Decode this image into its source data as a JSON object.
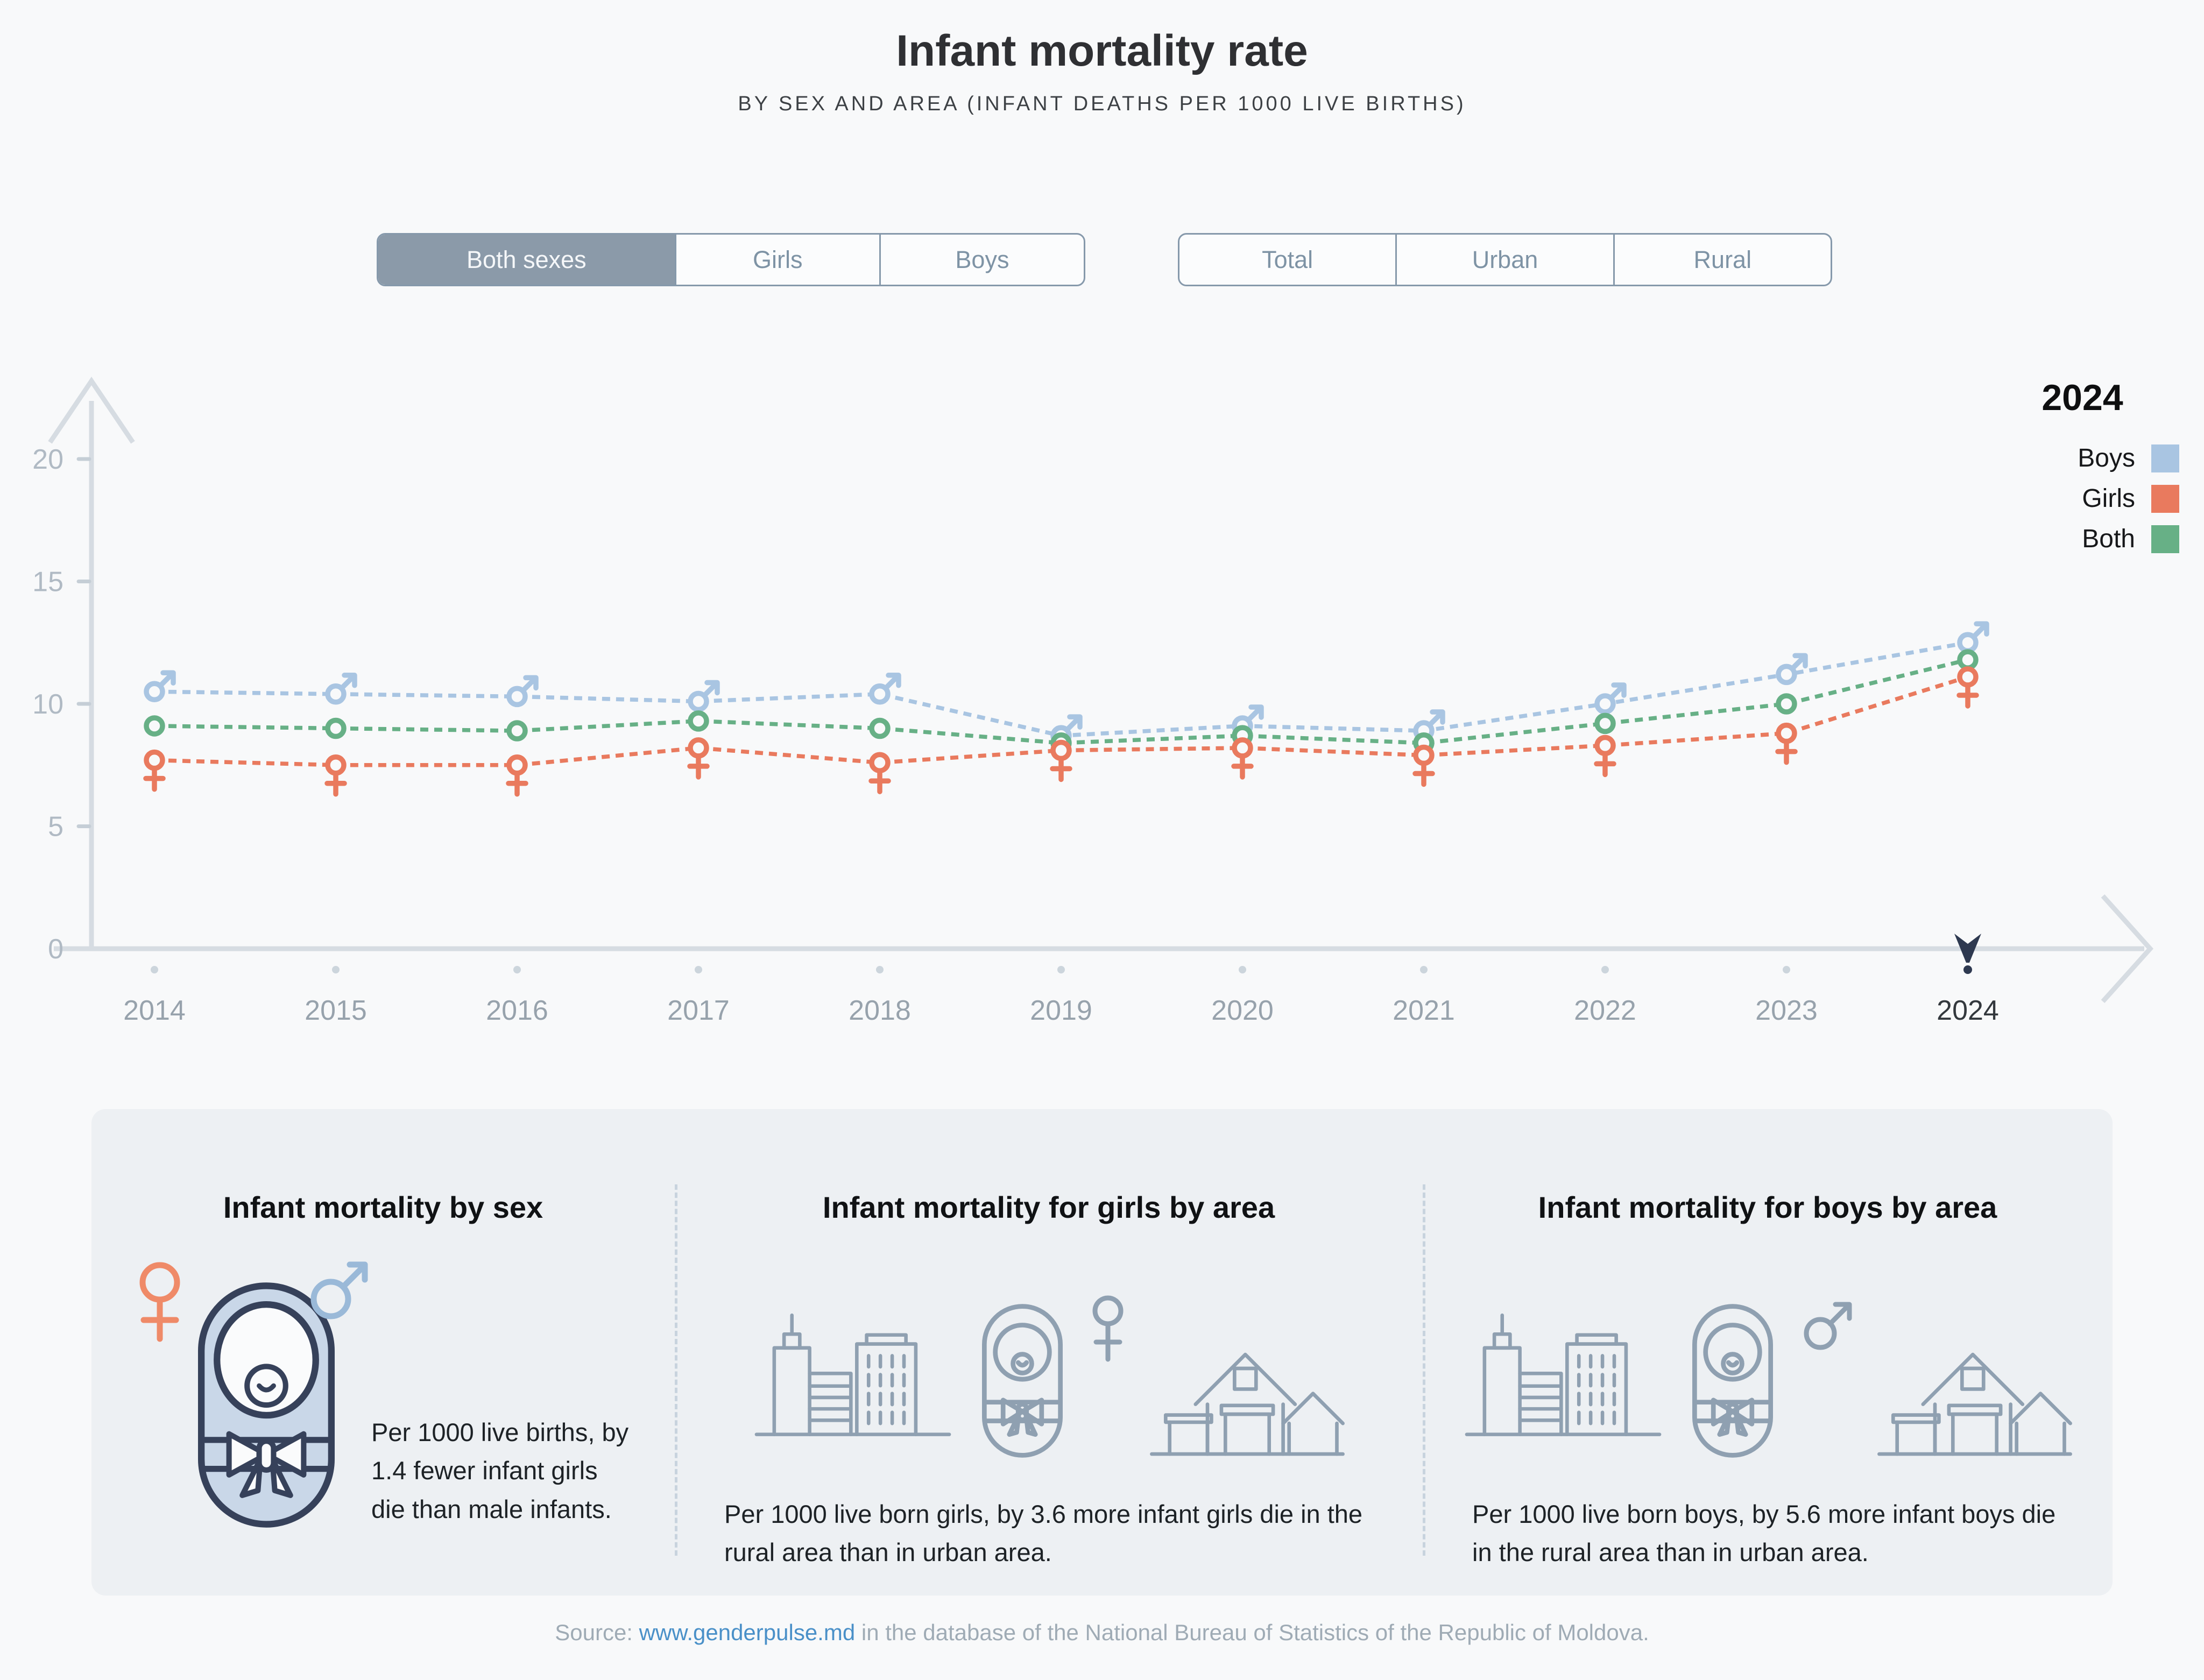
{
  "header": {
    "title": "Infant mortality rate",
    "subtitle": "BY SEX AND AREA (INFANT DEATHS PER 1000 LIVE BIRTHS)"
  },
  "controls": {
    "sex_filter": {
      "options": [
        {
          "label": "Both sexes",
          "selected": true
        },
        {
          "label": "Girls",
          "selected": false
        },
        {
          "label": "Boys",
          "selected": false
        }
      ]
    },
    "area_filter": {
      "options": [
        {
          "label": "Total",
          "selected": false
        },
        {
          "label": "Urban",
          "selected": false
        },
        {
          "label": "Rural",
          "selected": false
        }
      ]
    }
  },
  "chart_data": {
    "type": "line",
    "title": "Infant mortality rate by sex (infant deaths per 1000 live births)",
    "line_style": "dashed",
    "grid": false,
    "x": [
      2014,
      2015,
      2016,
      2017,
      2018,
      2019,
      2020,
      2021,
      2022,
      2023,
      2024
    ],
    "ylim": [
      0,
      20
    ],
    "yticks": [
      0,
      5,
      10,
      15,
      20
    ],
    "highlight_year": "2024",
    "series": [
      {
        "name": "Boys",
        "marker": "male",
        "color": "#a9c5e2",
        "values": [
          10.5,
          10.4,
          10.3,
          10.1,
          10.4,
          8.7,
          9.1,
          8.9,
          10.0,
          11.2,
          12.5
        ]
      },
      {
        "name": "Both",
        "marker": "circle",
        "color": "#67b086",
        "values": [
          9.1,
          9.0,
          8.9,
          9.3,
          9.0,
          8.4,
          8.7,
          8.4,
          9.2,
          10.0,
          11.8
        ]
      },
      {
        "name": "Girls",
        "marker": "female",
        "color": "#e97a5e",
        "values": [
          7.7,
          7.5,
          7.5,
          8.2,
          7.6,
          8.1,
          8.2,
          7.9,
          8.3,
          8.8,
          11.1
        ]
      }
    ],
    "legend": {
      "title": "2024",
      "position": "top-right",
      "entries": [
        {
          "label": "Boys",
          "color": "#a9c5e2"
        },
        {
          "label": "Girls",
          "color": "#e97a5e"
        },
        {
          "label": "Both",
          "color": "#67b086"
        }
      ]
    }
  },
  "cards": [
    {
      "title": "Infant mortality by sex",
      "icons": [
        "female-symbol-icon",
        "baby-icon",
        "male-symbol-icon"
      ],
      "text": "Per 1000 live births, by 1.4 fewer infant girls die than male infants."
    },
    {
      "title": "Infant mortality for girls by area",
      "icons": [
        "city-icon",
        "baby-icon",
        "female-symbol-icon",
        "house-icon"
      ],
      "text": "Per 1000 live born girls, by 3.6 more infant girls die in the rural area than in urban area."
    },
    {
      "title": "Infant mortality for boys by area",
      "icons": [
        "city-icon",
        "baby-icon",
        "male-symbol-icon",
        "house-icon"
      ],
      "text": "Per 1000 live born boys, by 5.6 more infant boys die in the rural area than in urban area."
    }
  ],
  "footer": {
    "source_prefix": "Source: ",
    "source_link": "www.genderpulse.md",
    "source_suffix": " in the database of the National Bureau of Statistics of the Republic of Moldova."
  },
  "colors": {
    "background": "#f8f9fa",
    "panel": "#edf0f3",
    "axis": "#d6dce2",
    "axis_label": "#b0bac4",
    "year_label": "#97a2ac",
    "year_label_highlight": "#33383d",
    "year_dot": "#ccd5dc",
    "highlight_pin": "#2e3950",
    "button_border": "#8699ab",
    "button_selected_bg": "#8b9aa9",
    "button_selected_text": "#f5f7f9",
    "button_text": "#7e93a5",
    "boys": "#a9c5e2",
    "girls": "#e97a5e",
    "both": "#67b086"
  }
}
